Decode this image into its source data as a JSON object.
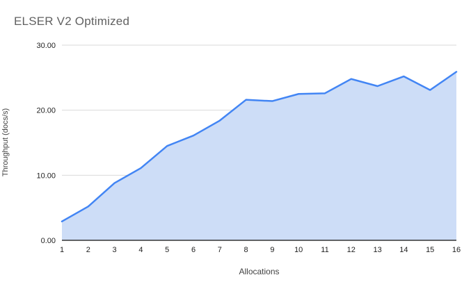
{
  "chart_data": {
    "type": "area",
    "title": "ELSER V2 Optimized",
    "xlabel": "Allocations",
    "ylabel": "Throughput (docs/s)",
    "x": [
      1,
      2,
      3,
      4,
      5,
      6,
      7,
      8,
      9,
      10,
      11,
      12,
      13,
      14,
      15,
      16
    ],
    "values": [
      2.9,
      5.2,
      8.8,
      11.1,
      14.5,
      16.1,
      18.4,
      21.6,
      21.4,
      22.5,
      22.6,
      24.8,
      23.7,
      25.2,
      23.1,
      25.9
    ],
    "ylim": [
      0,
      30
    ],
    "y_ticks": [
      0,
      10,
      20,
      30
    ],
    "y_tick_labels": [
      "0.00",
      "10.00",
      "20.00",
      "30.00"
    ],
    "grid": true,
    "legend": "none",
    "colors": {
      "line": "#4285f4",
      "fill": "#cdddf7",
      "grid": "#d9d9d9",
      "axis_line": "#333333",
      "title": "#616161",
      "tick_label": "#222222",
      "axis_title": "#424242",
      "background": "#ffffff"
    }
  }
}
